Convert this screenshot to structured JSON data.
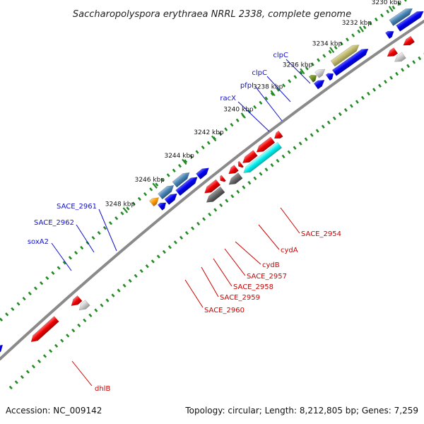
{
  "title": "Saccharopolyspora erythraea NRRL 2338, complete genome",
  "footer": {
    "accession": "Accession: NC_009142",
    "info": "Topology: circular; Length: 8,212,805 bp; Genes: 7,259"
  },
  "colors": {
    "backbone": "#8a8a8a",
    "tick_dots": "#228b22",
    "label_forward": "#1010cc",
    "label_reverse": "#cc0000"
  },
  "ticks": [
    "3230 kbp",
    "3232 kbp",
    "3234 kbp",
    "3236 kbp",
    "3238 kbp",
    "3240 kbp",
    "3242 kbp",
    "3244 kbp",
    "3246 kbp",
    "3248 kbp"
  ],
  "forward_labels": [
    "clpC",
    "clpC",
    "pfpI",
    "racX",
    "SACE_2961",
    "SACE_2962",
    "soxA2"
  ],
  "reverse_labels": [
    "SACE_2954",
    "cydA",
    "cydB",
    "SACE_2957",
    "SACE_2958",
    "SACE_2959",
    "SACE_2960",
    "dhlB"
  ]
}
